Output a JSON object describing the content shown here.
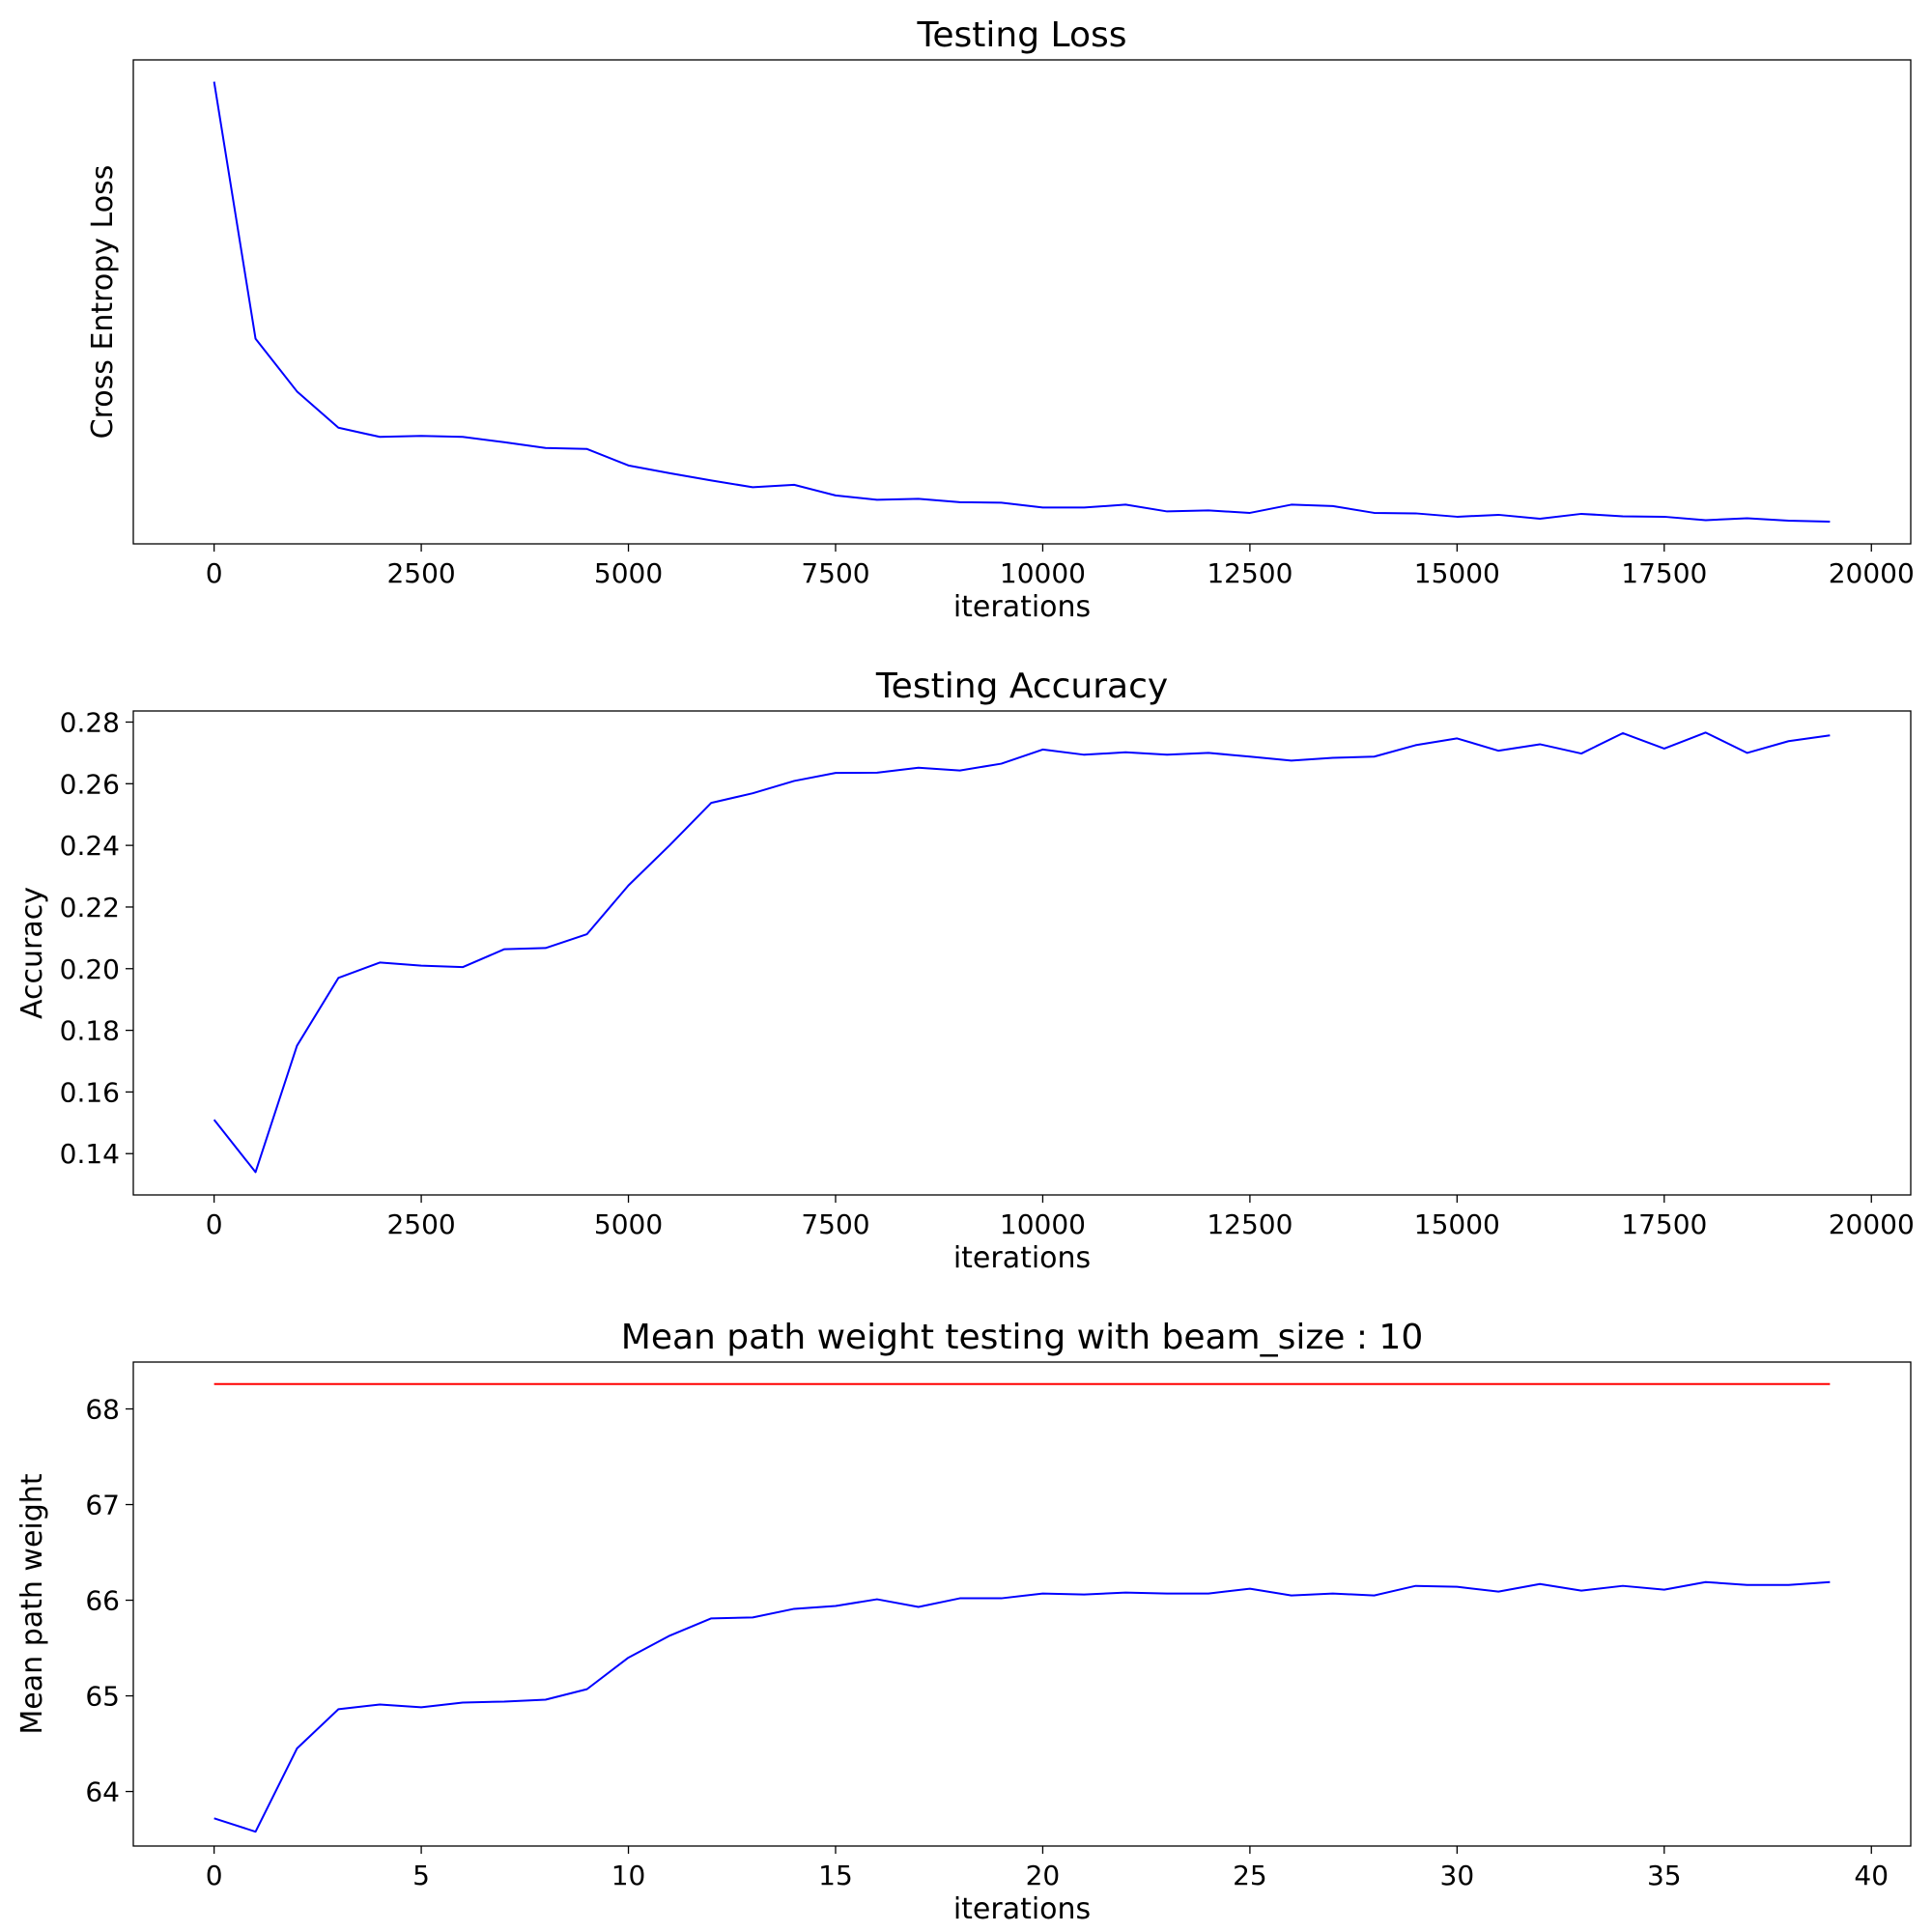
{
  "chart_data": [
    {
      "type": "line",
      "title": "Testing Loss",
      "xlabel": "iterations",
      "ylabel": "Cross Entropy Loss",
      "xlim": [
        -975,
        20475
      ],
      "ylim": [
        0,
        1
      ],
      "show_y_ticks": false,
      "xticks": [
        0,
        2500,
        5000,
        7500,
        10000,
        12500,
        15000,
        17500,
        20000
      ],
      "yticks": [],
      "series": [
        {
          "color": "#0000ff",
          "x": [
            0,
            500,
            1000,
            1500,
            2000,
            2500,
            3000,
            3500,
            4000,
            4500,
            5000,
            5500,
            6000,
            6500,
            7000,
            7500,
            8000,
            8500,
            9000,
            9500,
            10000,
            10500,
            11000,
            11500,
            12000,
            12500,
            13000,
            13500,
            14000,
            14500,
            15000,
            15500,
            16000,
            16500,
            17000,
            17500,
            18000,
            18500,
            19000,
            19500
          ],
          "y": [
            0.955,
            0.424,
            0.315,
            0.24,
            0.221,
            0.223,
            0.221,
            0.21,
            0.198,
            0.196,
            0.162,
            0.146,
            0.131,
            0.117,
            0.122,
            0.1,
            0.091,
            0.093,
            0.086,
            0.085,
            0.075,
            0.075,
            0.081,
            0.067,
            0.069,
            0.064,
            0.081,
            0.078,
            0.064,
            0.063,
            0.056,
            0.06,
            0.052,
            0.062,
            0.057,
            0.056,
            0.049,
            0.053,
            0.048,
            0.046
          ]
        }
      ]
    },
    {
      "type": "line",
      "title": "Testing Accuracy",
      "xlabel": "iterations",
      "ylabel": "Accuracy",
      "xlim": [
        -975,
        20475
      ],
      "ylim": [
        0.1266,
        0.2836
      ],
      "show_y_ticks": true,
      "xticks": [
        0,
        2500,
        5000,
        7500,
        10000,
        12500,
        15000,
        17500,
        20000
      ],
      "yticks": [
        0.14,
        0.16,
        0.18,
        0.2,
        0.22,
        0.24,
        0.26,
        0.28
      ],
      "ytick_decimals": 2,
      "series": [
        {
          "color": "#0000ff",
          "x": [
            0,
            500,
            1000,
            1500,
            2000,
            2500,
            3000,
            3500,
            4000,
            4500,
            5000,
            5500,
            6000,
            6500,
            7000,
            7500,
            8000,
            8500,
            9000,
            9500,
            10000,
            10500,
            11000,
            11500,
            12000,
            12500,
            13000,
            13500,
            14000,
            14500,
            15000,
            15500,
            16000,
            16500,
            17000,
            17500,
            18000,
            18500,
            19000,
            19500
          ],
          "y": [
            0.151,
            0.134,
            0.175,
            0.197,
            0.202,
            0.201,
            0.2005,
            0.2063,
            0.2067,
            0.2112,
            0.227,
            0.2401,
            0.2538,
            0.2569,
            0.2609,
            0.2635,
            0.2636,
            0.2652,
            0.2643,
            0.2665,
            0.2711,
            0.2694,
            0.2702,
            0.2694,
            0.27,
            0.2688,
            0.2675,
            0.2684,
            0.2688,
            0.2725,
            0.2747,
            0.2707,
            0.2728,
            0.2698,
            0.2764,
            0.2714,
            0.2766,
            0.27,
            0.2738,
            0.2757
          ]
        }
      ]
    },
    {
      "type": "line",
      "title": "Mean path weight testing with beam_size : 10",
      "xlabel": "iterations",
      "ylabel": "Mean path weight",
      "xlim": [
        -1.95,
        40.95
      ],
      "ylim": [
        63.43,
        68.49
      ],
      "show_y_ticks": true,
      "xticks": [
        0,
        5,
        10,
        15,
        20,
        25,
        30,
        35,
        40
      ],
      "yticks": [
        64,
        65,
        66,
        67,
        68
      ],
      "ytick_decimals": 0,
      "series": [
        {
          "color": "#ff0000",
          "x": [
            0,
            39
          ],
          "y": [
            68.26,
            68.26
          ]
        },
        {
          "color": "#0000ff",
          "x": [
            0,
            1,
            2,
            3,
            4,
            5,
            6,
            7,
            8,
            9,
            10,
            11,
            12,
            13,
            14,
            15,
            16,
            17,
            18,
            19,
            20,
            21,
            22,
            23,
            24,
            25,
            26,
            27,
            28,
            29,
            30,
            31,
            32,
            33,
            34,
            35,
            36,
            37,
            38,
            39
          ],
          "y": [
            63.72,
            63.58,
            64.45,
            64.86,
            64.91,
            64.88,
            64.93,
            64.94,
            64.96,
            65.07,
            65.4,
            65.63,
            65.81,
            65.82,
            65.91,
            65.94,
            66.01,
            65.93,
            66.02,
            66.02,
            66.07,
            66.06,
            66.08,
            66.07,
            66.07,
            66.12,
            66.05,
            66.07,
            66.05,
            66.15,
            66.14,
            66.09,
            66.17,
            66.1,
            66.15,
            66.11,
            66.19,
            66.16,
            66.16,
            66.19
          ]
        }
      ]
    }
  ]
}
